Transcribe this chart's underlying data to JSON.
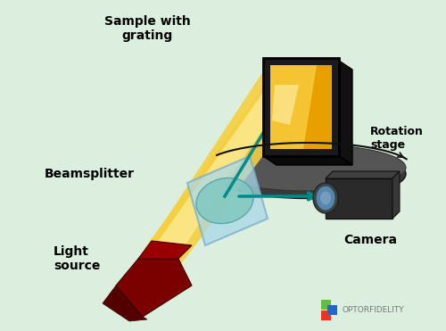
{
  "bg_color": "#dceedd",
  "labels": {
    "sample": "Sample with\ngrating",
    "beamsplitter": "Beamsplitter",
    "light_source": "Light\nsource",
    "camera": "Camera",
    "rotation_stage": "Rotation\nstage"
  },
  "colors": {
    "beam_yellow_outer": "#F5D040",
    "beam_yellow_inner": "#FFEEA0",
    "beam_teal": "#008B8B",
    "light_source_dark": "#7B0000",
    "light_source_mid": "#9B0000",
    "beamsplitter_blue": "#A8D8EA",
    "beamsplitter_lens": "#80C8C0",
    "sample_black": "#1a1a1a",
    "sample_gold_dark": "#E8A000",
    "sample_gold_light": "#FFDD55",
    "sample_gold_bright": "#FFFACC",
    "stage_dark": "#3a3a3a",
    "stage_top": "#555555",
    "camera_dark": "#2a2a2a",
    "camera_mid": "#404040",
    "camera_lens_blue": "#5588AA",
    "logo_green": "#66BB44",
    "logo_red": "#EE3322",
    "logo_blue": "#2266CC",
    "logo_text": "#777777"
  }
}
